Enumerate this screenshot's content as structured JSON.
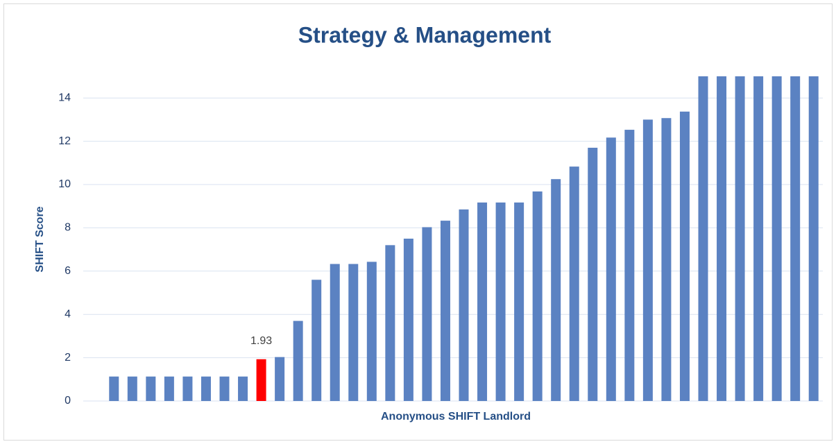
{
  "chart_data": {
    "type": "bar",
    "title": "Strategy & Management",
    "x_label": "Anonymous SHIFT Landlord",
    "y_label": "SHIFT Score",
    "categories": [
      null,
      null,
      null,
      null,
      null,
      null,
      null,
      null,
      null,
      null,
      null,
      null,
      null,
      null,
      null,
      null,
      null,
      null,
      null,
      null,
      null,
      null,
      null,
      null,
      null,
      null,
      null,
      null,
      null,
      null,
      null,
      null,
      null,
      null,
      null,
      null,
      null,
      null,
      null
    ],
    "values": [
      1.13,
      1.13,
      1.13,
      1.13,
      1.13,
      1.13,
      1.13,
      1.13,
      1.93,
      2.03,
      3.7,
      5.6,
      6.33,
      6.33,
      6.43,
      7.2,
      7.5,
      8.03,
      8.33,
      8.85,
      9.17,
      9.17,
      9.17,
      9.68,
      10.25,
      10.83,
      11.7,
      12.17,
      12.53,
      13.0,
      13.07,
      13.37,
      15,
      15,
      15,
      15,
      15,
      15,
      15
    ],
    "value_labels": [
      null,
      null,
      null,
      null,
      null,
      null,
      null,
      null,
      "1.93",
      null,
      null,
      null,
      null,
      null,
      null,
      null,
      null,
      null,
      null,
      null,
      null,
      null,
      null,
      null,
      null,
      null,
      null,
      null,
      null,
      null,
      null,
      null,
      null,
      null,
      null,
      null,
      null,
      null,
      null
    ],
    "colors": [
      "#5b82c2",
      "#5b82c2",
      "#5b82c2",
      "#5b82c2",
      "#5b82c2",
      "#5b82c2",
      "#5b82c2",
      "#5b82c2",
      "#ff0000",
      "#5b82c2",
      "#5b82c2",
      "#5b82c2",
      "#5b82c2",
      "#5b82c2",
      "#5b82c2",
      "#5b82c2",
      "#5b82c2",
      "#5b82c2",
      "#5b82c2",
      "#5b82c2",
      "#5b82c2",
      "#5b82c2",
      "#5b82c2",
      "#5b82c2",
      "#5b82c2",
      "#5b82c2",
      "#5b82c2",
      "#5b82c2",
      "#5b82c2",
      "#5b82c2",
      "#5b82c2",
      "#5b82c2",
      "#5b82c2",
      "#5b82c2",
      "#5b82c2",
      "#5b82c2",
      "#5b82c2",
      "#5b82c2",
      "#5b82c2"
    ],
    "ylim": [
      0,
      15
    ],
    "yticks": [
      0,
      2,
      4,
      6,
      8,
      10,
      12,
      14
    ],
    "grid": true
  }
}
